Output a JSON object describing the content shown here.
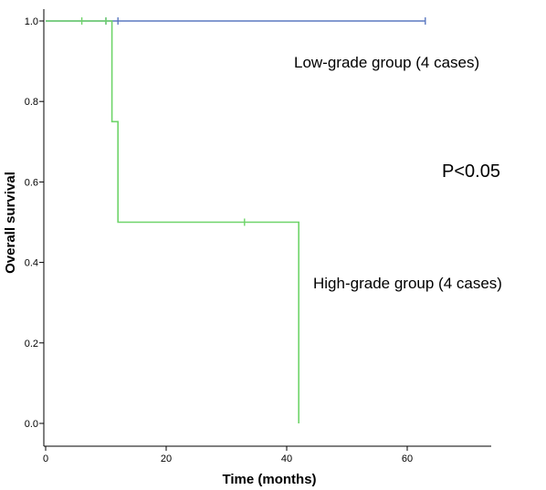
{
  "chart_data": {
    "type": "line",
    "chart_subtype": "kaplan-meier step",
    "title": "",
    "xlabel": "Time (months)",
    "ylabel": "Overall survival",
    "xlim": [
      0,
      74
    ],
    "ylim": [
      0,
      1.0
    ],
    "x_ticks": [
      0,
      20,
      40,
      60
    ],
    "x_tick_labels": [
      "0",
      "20",
      "40",
      "60"
    ],
    "y_ticks": [
      0.0,
      0.2,
      0.4,
      0.6,
      0.8,
      1.0
    ],
    "y_tick_labels": [
      "0.0",
      "0.2",
      "0.4",
      "0.6",
      "0.8",
      "1.0"
    ],
    "grid": false,
    "series": [
      {
        "color": "#5b78c0",
        "steps": [
          [
            0,
            1.0
          ],
          [
            63,
            1.0
          ]
        ],
        "censored": [
          [
            10,
            1.0
          ],
          [
            12,
            1.0
          ],
          [
            63,
            1.0
          ]
        ]
      },
      {
        "color": "#6fd46a",
        "steps": [
          [
            0,
            1.0
          ],
          [
            11,
            1.0
          ],
          [
            11,
            0.75
          ],
          [
            12,
            0.75
          ],
          [
            12,
            0.5
          ],
          [
            42,
            0.5
          ],
          [
            42,
            0.0
          ]
        ],
        "censored": [
          [
            6,
            1.0
          ],
          [
            10,
            1.0
          ],
          [
            33,
            0.5
          ]
        ]
      }
    ],
    "annotations": {
      "low_grade": "Low-grade group (4 cases)",
      "high_grade": "High-grade group (4 cases)",
      "p_value": "P<0.05"
    }
  }
}
